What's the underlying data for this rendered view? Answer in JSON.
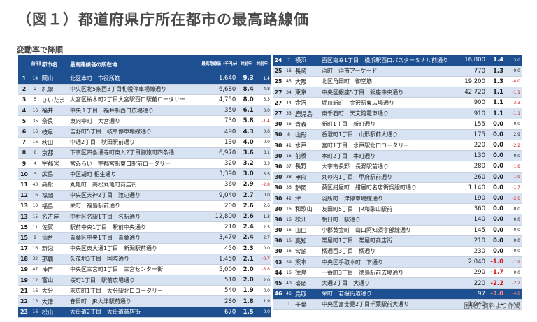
{
  "title": "（図１）都道府県庁所在都市の最高路線価",
  "subtitle": "変動率で降順",
  "source": "国税庁資料より作成",
  "headers": {
    "rank": "",
    "prev_rank": "前年順位",
    "city": "都市名",
    "location": "最高路線価の所在地",
    "price": "最高路線価（千円/㎡）",
    "change": "対前年",
    "prev_change": "対前年（昨年）"
  },
  "rows": [
    {
      "rank": "1",
      "prev": "14",
      "city": "岡山",
      "loc": "北区本町　市役所筋",
      "price": "1,640",
      "chg": "9.3",
      "pchg": "1.4"
    },
    {
      "rank": "2",
      "prev": "2",
      "city": "札幌",
      "loc": "中央区北5条西3丁目札幌停車場線通り",
      "price": "6,680",
      "chg": "8.4",
      "pchg": "4.8"
    },
    {
      "rank": "3",
      "prev": "5",
      "city": "さいたま",
      "loc": "大宮区桜木町2丁目大宮駅西口駅前ロータリー",
      "price": "4,750",
      "chg": "8.0",
      "pchg": "3.3"
    },
    {
      "rank": "4",
      "prev": "16",
      "city": "福井",
      "loc": "中央１丁目　福井駅西口広場通り",
      "price": "350",
      "chg": "6.1",
      "pchg": "0.0"
    },
    {
      "rank": "5",
      "prev": "35",
      "city": "奈良",
      "loc": "東向中町　大宮通り",
      "price": "730",
      "chg": "5.8",
      "pchg": "-1.4"
    },
    {
      "rank": "6",
      "prev": "16",
      "city": "岐阜",
      "loc": "吉野町5丁目　岐阜停車場線通り",
      "price": "490",
      "chg": "4.3",
      "pchg": "0.0"
    },
    {
      "rank": "7",
      "prev": "16",
      "city": "秋田",
      "loc": "中通2丁目　秋田駅前通り",
      "price": "130",
      "chg": "4.0",
      "pchg": "0.0"
    },
    {
      "rank": "8",
      "prev": "6",
      "city": "京都",
      "loc": "下京区四条通寺町東入2丁目御旅町四条通",
      "price": "6,970",
      "chg": "3.6",
      "pchg": "3.1"
    },
    {
      "rank": "9",
      "prev": "4",
      "city": "宇都宮",
      "loc": "宮みらい　宇都宮駅東口駅前ロータリー",
      "price": "320",
      "chg": "3.2",
      "pchg": "3.3"
    },
    {
      "rank": "10",
      "prev": "3",
      "city": "広島",
      "loc": "中区胡町 相生通り",
      "price": "3,390",
      "chg": "3.0",
      "pchg": "3.5"
    },
    {
      "rank": "11",
      "prev": "43",
      "city": "高松",
      "loc": "丸亀町　高松丸亀町商店街",
      "price": "360",
      "chg": "2.9",
      "pchg": "-2.8"
    },
    {
      "rank": "12",
      "prev": "16",
      "city": "福岡",
      "loc": "中央区天神2丁目　渡辺通り",
      "price": "9,040",
      "chg": "2.7",
      "pchg": "0.0"
    },
    {
      "rank": "13",
      "prev": "10",
      "city": "福島",
      "loc": "栄町　福島駅前通り",
      "price": "200",
      "chg": "2.6",
      "pchg": "2.6"
    },
    {
      "rank": "13",
      "prev": "15",
      "city": "名古屋",
      "loc": "中村区名駅1丁目　名駅通り",
      "price": "12,800",
      "chg": "2.6",
      "pchg": "1.3"
    },
    {
      "rank": "15",
      "prev": "11",
      "city": "佐賀",
      "loc": "駅前中央1丁目　駅前中央通り",
      "price": "210",
      "chg": "2.4",
      "pchg": "2.5"
    },
    {
      "rank": "15",
      "prev": "9",
      "city": "仙台",
      "loc": "青葉区中央1丁目　青葉通り",
      "price": "3,470",
      "chg": "2.4",
      "pchg": "2.7"
    },
    {
      "rank": "17",
      "prev": "16",
      "city": "新潟",
      "loc": "中央区東大通1丁目　新潟駅前通り",
      "price": "450",
      "chg": "2.3",
      "pchg": "0.0"
    },
    {
      "rank": "18",
      "prev": "32",
      "city": "那覇",
      "loc": "久茂地3丁目　国際通り",
      "price": "1,450",
      "chg": "2.1",
      "pchg": "-0.7"
    },
    {
      "rank": "19",
      "prev": "47",
      "city": "神戸",
      "loc": "中央区三宮町1丁目　三宮センター街",
      "price": "5,000",
      "chg": "2.0",
      "pchg": "-5.8"
    },
    {
      "rank": "19",
      "prev": "12",
      "city": "富山",
      "loc": "桜町1丁目　駅前広場通り",
      "price": "510",
      "chg": "2.0",
      "pchg": "2.0"
    },
    {
      "rank": "21",
      "prev": "16",
      "city": "大分",
      "loc": "末広町1丁目　大分駅北口ロータリー",
      "price": "540",
      "chg": "1.9",
      "pchg": "0.0"
    },
    {
      "rank": "22",
      "prev": "13",
      "city": "大津",
      "loc": "春日町　JR大津駅前通り",
      "price": "280",
      "chg": "1.8",
      "pchg": "1.9"
    },
    {
      "rank": "23",
      "prev": "16",
      "city": "松山",
      "loc": "大街道2丁目　大街道商店街",
      "price": "670",
      "chg": "1.5",
      "pchg": "0.0"
    },
    {
      "rank": "24",
      "prev": "7",
      "city": "横浜",
      "loc": "西区南幸1丁目　横浜駅西口バスターミナル前通り",
      "price": "16,800",
      "chg": "1.4",
      "pchg": "3.0"
    },
    {
      "rank": "25",
      "prev": "16",
      "city": "長崎",
      "loc": "浜町　浜市アーケード",
      "price": "770",
      "chg": "1.3",
      "pchg": "0.0"
    },
    {
      "rank": "25",
      "prev": "45",
      "city": "大阪",
      "loc": "北区角田町　御堂筋",
      "price": "19,200",
      "chg": "1.3",
      "pchg": "-4.0"
    },
    {
      "rank": "27",
      "prev": "34",
      "city": "東京",
      "loc": "中央区銀座5丁目　銀座中央通り",
      "price": "42,720",
      "chg": "1.1",
      "pchg": "-1.1"
    },
    {
      "rank": "27",
      "prev": "44",
      "city": "金沢",
      "loc": "堀川新町　金沢駅東広場通り",
      "price": "900",
      "chg": "1.1",
      "pchg": "-3.3"
    },
    {
      "rank": "27",
      "prev": "33",
      "city": "鹿児島",
      "loc": "東千石町　天文館電車通り",
      "price": "910",
      "chg": "1.1",
      "pchg": "-1.1"
    },
    {
      "rank": "30",
      "prev": "16",
      "city": "青森",
      "loc": "新町1丁目　新町通り",
      "price": "155",
      "chg": "0.0",
      "pchg": "0.0"
    },
    {
      "rank": "30",
      "prev": "8",
      "city": "山形",
      "loc": "香澄町1丁目　山形駅前大通り",
      "price": "175",
      "chg": "0.0",
      "pchg": "2.9"
    },
    {
      "rank": "30",
      "prev": "41",
      "city": "水戸",
      "loc": "宮町1丁目　水戸駅北口ロータリー",
      "price": "220",
      "chg": "0.0",
      "pchg": "-2.2"
    },
    {
      "rank": "30",
      "prev": "16",
      "city": "前橋",
      "loc": "本町2丁目　本町通り",
      "price": "130",
      "chg": "0.0",
      "pchg": "0.0"
    },
    {
      "rank": "30",
      "prev": "37",
      "city": "長野",
      "loc": "大字南長野　長野駅前通り",
      "price": "280",
      "chg": "0.0",
      "pchg": "-1.8"
    },
    {
      "rank": "30",
      "prev": "38",
      "city": "甲府",
      "loc": "丸の内1丁目　甲府駅前通り",
      "price": "260",
      "chg": "0.0",
      "pchg": "-1.9"
    },
    {
      "rank": "30",
      "prev": "36",
      "city": "静岡",
      "loc": "葵区紺屋町　紺屋町名店街呉服町通り",
      "price": "1,140",
      "chg": "0.0",
      "pchg": "-1.7"
    },
    {
      "rank": "30",
      "prev": "42",
      "city": "津",
      "loc": "羽所町　津停車場線通り",
      "price": "190",
      "chg": "0.0",
      "pchg": "-2.6"
    },
    {
      "rank": "30",
      "prev": "16",
      "city": "和歌山",
      "loc": "友田町5丁目　JR和歌山駅前",
      "price": "360",
      "chg": "0.0",
      "pchg": "0.0"
    },
    {
      "rank": "30",
      "prev": "16",
      "city": "松江",
      "loc": "朝日町　駅通り",
      "price": "140",
      "chg": "0.0",
      "pchg": "0.0"
    },
    {
      "rank": "30",
      "prev": "16",
      "city": "山口",
      "loc": "小郡黄金町　山口阿知須宇部線通り",
      "price": "145",
      "chg": "0.0",
      "pchg": "0.0"
    },
    {
      "rank": "30",
      "prev": "16",
      "city": "高知",
      "loc": "帯屋町1丁目　帯屋町商店街",
      "price": "210",
      "chg": "0.0",
      "pchg": "0.0"
    },
    {
      "rank": "30",
      "prev": "16",
      "city": "宮崎",
      "loc": "橘通西3丁目　橘通り",
      "price": "230",
      "chg": "0.0",
      "pchg": "0.0"
    },
    {
      "rank": "43",
      "prev": "39",
      "city": "熊本",
      "loc": "中央区手取本町　下通り",
      "price": "2,040",
      "chg": "-1.0",
      "pchg": "-1.9"
    },
    {
      "rank": "44",
      "prev": "16",
      "city": "徳島",
      "loc": "一番町3丁目　徳島駅前広場通り",
      "price": "290",
      "chg": "-1.7",
      "pchg": "0.0"
    },
    {
      "rank": "45",
      "prev": "40",
      "city": "盛岡",
      "loc": "大通2丁目　大通り",
      "price": "220",
      "chg": "-2.2",
      "pchg": "-2.2"
    },
    {
      "rank": "46",
      "prev": "46",
      "city": "鳥取",
      "loc": "栄町　若桜街道通り",
      "price": "97",
      "chg": "-3.0",
      "pchg": "-4.8"
    },
    {
      "rank": "",
      "prev": "1",
      "city": "千葉",
      "loc": "中央区富士見2丁目千葉駅前大通り",
      "price": "1,940",
      "chg": "-",
      "pchg": "5.1"
    }
  ]
}
